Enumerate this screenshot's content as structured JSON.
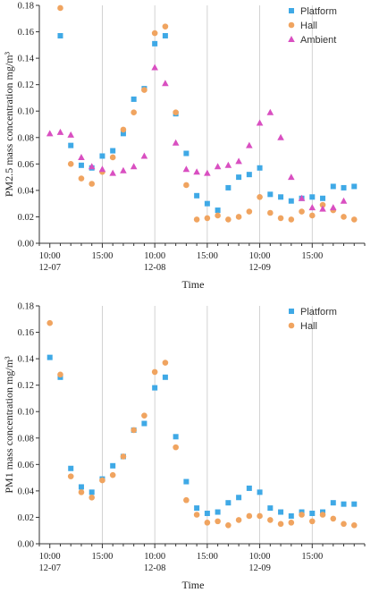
{
  "chart_data": [
    {
      "type": "scatter",
      "ylabel": "PM2.5 mass concentration mg/m³",
      "xlabel": "Time",
      "ylim": [
        0,
        0.18
      ],
      "yticks": [
        "0.00",
        "0.02",
        "0.04",
        "0.06",
        "0.08",
        "0.10",
        "0.12",
        "0.14",
        "0.16",
        "0.18"
      ],
      "xticks": [
        {
          "x": 0,
          "line1": "10:00",
          "line2": "12-07"
        },
        {
          "x": 5,
          "line1": "15:00",
          "line2": ""
        },
        {
          "x": 10,
          "line1": "10:00",
          "line2": "12-08"
        },
        {
          "x": 15,
          "line1": "15:00",
          "line2": ""
        },
        {
          "x": 20,
          "line1": "10:00",
          "line2": "12-09"
        },
        {
          "x": 25,
          "line1": "15:00",
          "line2": ""
        }
      ],
      "xlim": [
        -1,
        30
      ],
      "grid_x": [
        5,
        10,
        15,
        20,
        25
      ],
      "legend_position": "top-right",
      "series": [
        {
          "name": "Platform",
          "marker": "square",
          "color": "#3fa9e6",
          "x": [
            1,
            2,
            3,
            4,
            5,
            6,
            7,
            8,
            9,
            10,
            11,
            12,
            13,
            14,
            15,
            16,
            17,
            18,
            19,
            20,
            21,
            22,
            23,
            24,
            25,
            26,
            27,
            28,
            29
          ],
          "values": [
            0.157,
            0.074,
            0.059,
            0.057,
            0.066,
            0.07,
            0.083,
            0.109,
            0.117,
            0.151,
            0.157,
            0.098,
            0.068,
            0.036,
            0.03,
            0.025,
            0.042,
            0.05,
            0.052,
            0.057,
            0.037,
            0.035,
            0.032,
            0.034,
            0.035,
            0.034,
            0.043,
            0.042,
            0.043
          ]
        },
        {
          "name": "Hall",
          "marker": "circle",
          "color": "#f0a460",
          "x": [
            1,
            2,
            3,
            4,
            5,
            6,
            7,
            8,
            9,
            10,
            11,
            12,
            13,
            14,
            15,
            16,
            17,
            18,
            19,
            20,
            21,
            22,
            23,
            24,
            25,
            26,
            27,
            28,
            29
          ],
          "values": [
            0.178,
            0.06,
            0.049,
            0.045,
            0.054,
            0.065,
            0.086,
            0.099,
            0.116,
            0.159,
            0.164,
            0.099,
            0.044,
            0.018,
            0.019,
            0.021,
            0.018,
            0.02,
            0.024,
            0.035,
            0.023,
            0.019,
            0.018,
            0.024,
            0.021,
            0.029,
            0.025,
            0.02,
            0.018
          ]
        },
        {
          "name": "Ambient",
          "marker": "triangle",
          "color": "#d94fc1",
          "x": [
            0,
            1,
            2,
            3,
            4,
            5,
            6,
            7,
            8,
            9,
            10,
            11,
            12,
            13,
            14,
            15,
            16,
            17,
            18,
            19,
            20,
            21,
            22,
            23,
            24,
            25,
            26,
            27,
            28
          ],
          "values": [
            0.083,
            0.084,
            0.082,
            0.065,
            0.058,
            0.056,
            0.053,
            0.055,
            0.058,
            0.066,
            0.133,
            0.121,
            0.076,
            0.056,
            0.054,
            0.053,
            0.058,
            0.059,
            0.062,
            0.074,
            0.091,
            0.099,
            0.08,
            0.05,
            0.034,
            0.027,
            0.026,
            0.027,
            0.032
          ]
        }
      ]
    },
    {
      "type": "scatter",
      "ylabel": "PM1 mass concentration mg/m³",
      "xlabel": "Time",
      "ylim": [
        0,
        0.18
      ],
      "yticks": [
        "0.00",
        "0.02",
        "0.04",
        "0.06",
        "0.08",
        "0.10",
        "0.12",
        "0.14",
        "0.16",
        "0.18"
      ],
      "xticks": [
        {
          "x": 0,
          "line1": "10:00",
          "line2": "12-07"
        },
        {
          "x": 5,
          "line1": "15:00",
          "line2": ""
        },
        {
          "x": 10,
          "line1": "10:00",
          "line2": "12-08"
        },
        {
          "x": 15,
          "line1": "15:00",
          "line2": ""
        },
        {
          "x": 20,
          "line1": "10:00",
          "line2": "12-09"
        },
        {
          "x": 25,
          "line1": "15:00",
          "line2": ""
        }
      ],
      "xlim": [
        -1,
        30
      ],
      "grid_x": [
        5,
        10,
        15,
        20,
        25
      ],
      "legend_position": "top-right",
      "series": [
        {
          "name": "Platform",
          "marker": "square",
          "color": "#3fa9e6",
          "x": [
            0,
            1,
            2,
            3,
            4,
            5,
            6,
            7,
            8,
            9,
            10,
            11,
            12,
            13,
            14,
            15,
            16,
            17,
            18,
            19,
            20,
            21,
            22,
            23,
            24,
            25,
            26,
            27,
            28,
            29
          ],
          "values": [
            0.141,
            0.126,
            0.057,
            0.043,
            0.039,
            0.049,
            0.059,
            0.066,
            0.086,
            0.091,
            0.118,
            0.126,
            0.081,
            0.047,
            0.027,
            0.023,
            0.024,
            0.031,
            0.035,
            0.042,
            0.039,
            0.027,
            0.024,
            0.021,
            0.024,
            0.023,
            0.024,
            0.031,
            0.03,
            0.03
          ]
        },
        {
          "name": "Hall",
          "marker": "circle",
          "color": "#f0a460",
          "x": [
            0,
            1,
            2,
            3,
            4,
            5,
            6,
            7,
            8,
            9,
            10,
            11,
            12,
            13,
            14,
            15,
            16,
            17,
            18,
            19,
            20,
            21,
            22,
            23,
            24,
            25,
            26,
            27,
            28,
            29
          ],
          "values": [
            0.167,
            0.128,
            0.051,
            0.039,
            0.035,
            0.048,
            0.052,
            0.066,
            0.086,
            0.097,
            0.13,
            0.137,
            0.073,
            0.033,
            0.022,
            0.016,
            0.017,
            0.014,
            0.018,
            0.021,
            0.021,
            0.018,
            0.015,
            0.016,
            0.022,
            0.017,
            0.022,
            0.019,
            0.015,
            0.014
          ]
        }
      ]
    }
  ]
}
